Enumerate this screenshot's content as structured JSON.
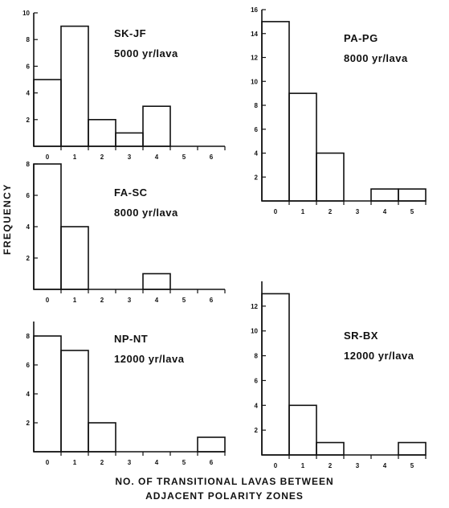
{
  "figure": {
    "ylabel": "FREQUENCY",
    "xlabel_line1": "NO. OF TRANSITIONAL LAVAS BETWEEN",
    "xlabel_line2": "ADJACENT POLARITY ZONES"
  },
  "colors": {
    "ink": "#111111",
    "background": "#ffffff"
  },
  "chart_data": [
    {
      "type": "bar",
      "name": "SK-JF",
      "annotation_line1": "SK-JF",
      "annotation_line2": "5000 yr/lava",
      "categories": [
        "0",
        "1",
        "2",
        "3",
        "4",
        "5",
        "6"
      ],
      "values": [
        5,
        9,
        2,
        1,
        3,
        0,
        0
      ],
      "yticks": [
        2,
        4,
        6,
        8,
        10
      ],
      "ylim": [
        0,
        10
      ],
      "xlabel": "",
      "ylabel": "",
      "grid": false
    },
    {
      "type": "bar",
      "name": "PA-PG",
      "annotation_line1": "PA-PG",
      "annotation_line2": "8000 yr/lava",
      "categories": [
        "0",
        "1",
        "2",
        "3",
        "4",
        "5"
      ],
      "values": [
        15,
        9,
        4,
        0,
        1,
        1
      ],
      "yticks": [
        2,
        4,
        6,
        8,
        10,
        12,
        14,
        16
      ],
      "ylim": [
        0,
        16
      ],
      "xlabel": "",
      "ylabel": "",
      "grid": false
    },
    {
      "type": "bar",
      "name": "FA-SC",
      "annotation_line1": "FA-SC",
      "annotation_line2": "8000 yr/lava",
      "categories": [
        "0",
        "1",
        "2",
        "3",
        "4",
        "5",
        "6"
      ],
      "values": [
        8,
        4,
        0,
        0,
        1,
        0,
        0
      ],
      "yticks": [
        2,
        4,
        6,
        8
      ],
      "ylim": [
        0,
        8
      ],
      "xlabel": "",
      "ylabel": "",
      "grid": false
    },
    {
      "type": "bar",
      "name": "NP-NT",
      "annotation_line1": "NP-NT",
      "annotation_line2": "12000 yr/lava",
      "categories": [
        "0",
        "1",
        "2",
        "3",
        "4",
        "5",
        "6"
      ],
      "values": [
        8,
        7,
        2,
        0,
        0,
        0,
        1
      ],
      "yticks": [
        2,
        4,
        6,
        8
      ],
      "ylim": [
        0,
        9
      ],
      "xlabel": "",
      "ylabel": "",
      "grid": false
    },
    {
      "type": "bar",
      "name": "SR-BX",
      "annotation_line1": "SR-BX",
      "annotation_line2": "12000 yr/lava",
      "categories": [
        "0",
        "1",
        "2",
        "3",
        "4",
        "5"
      ],
      "values": [
        13,
        4,
        1,
        0,
        0,
        1
      ],
      "yticks": [
        2,
        4,
        6,
        8,
        10,
        12
      ],
      "ylim": [
        0,
        14
      ],
      "xlabel": "",
      "ylabel": "",
      "grid": false
    }
  ]
}
